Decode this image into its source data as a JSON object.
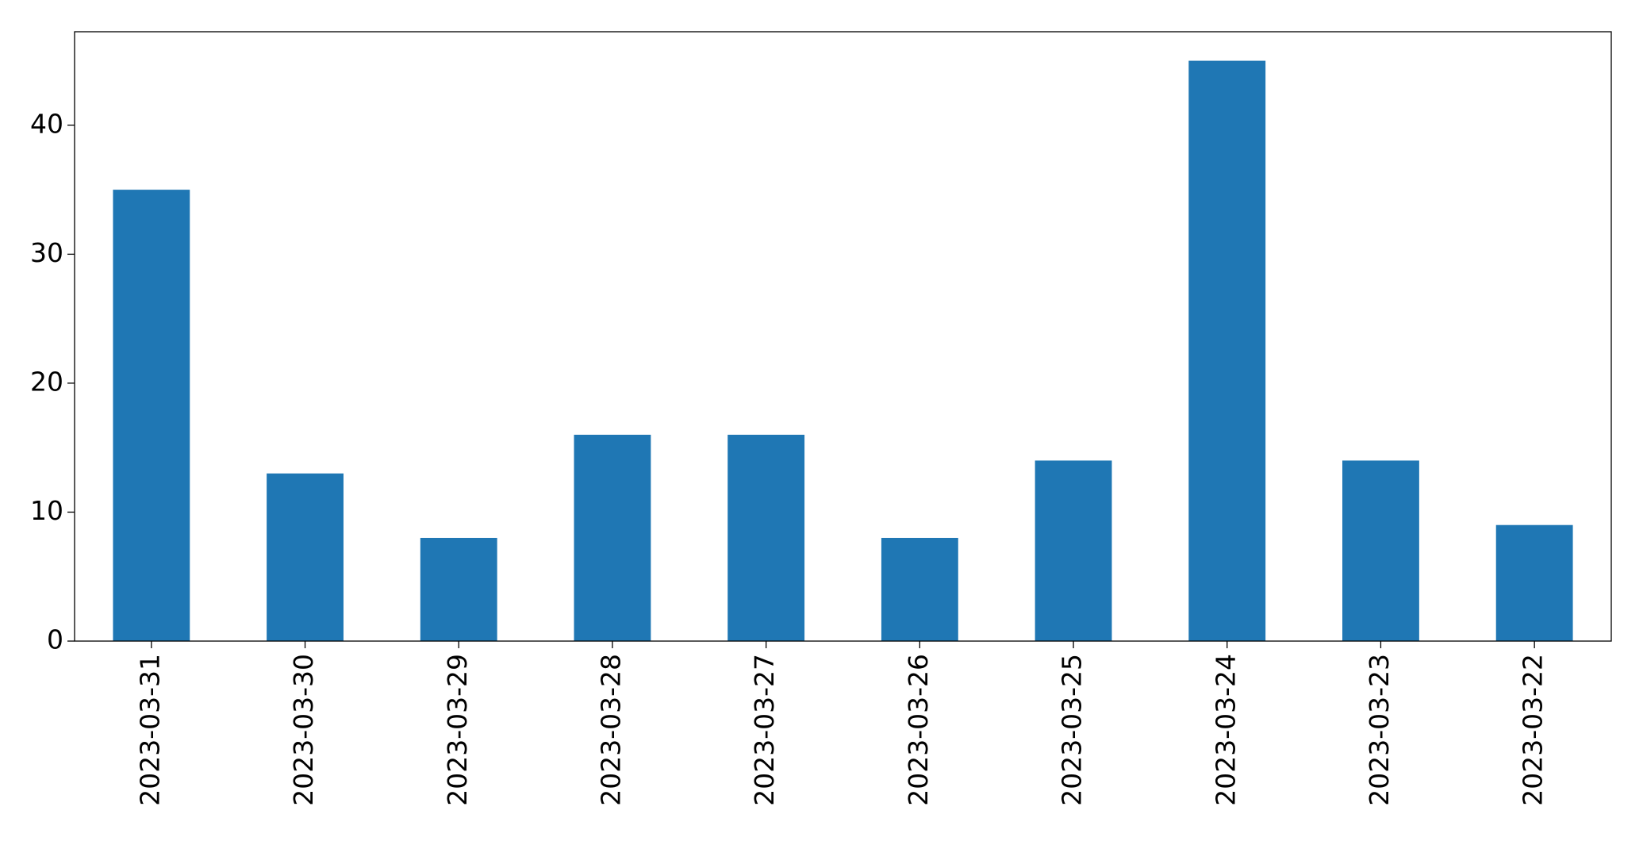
{
  "chart_data": {
    "type": "bar",
    "categories": [
      "2023-03-31",
      "2023-03-30",
      "2023-03-29",
      "2023-03-28",
      "2023-03-27",
      "2023-03-26",
      "2023-03-25",
      "2023-03-24",
      "2023-03-23",
      "2023-03-22"
    ],
    "values": [
      35,
      13,
      8,
      16,
      16,
      8,
      14,
      45,
      14,
      9
    ],
    "color": "#1f77b4",
    "ylim": [
      0,
      47.25
    ],
    "yticks": [
      0,
      10,
      20,
      30,
      40
    ],
    "grid": false
  }
}
